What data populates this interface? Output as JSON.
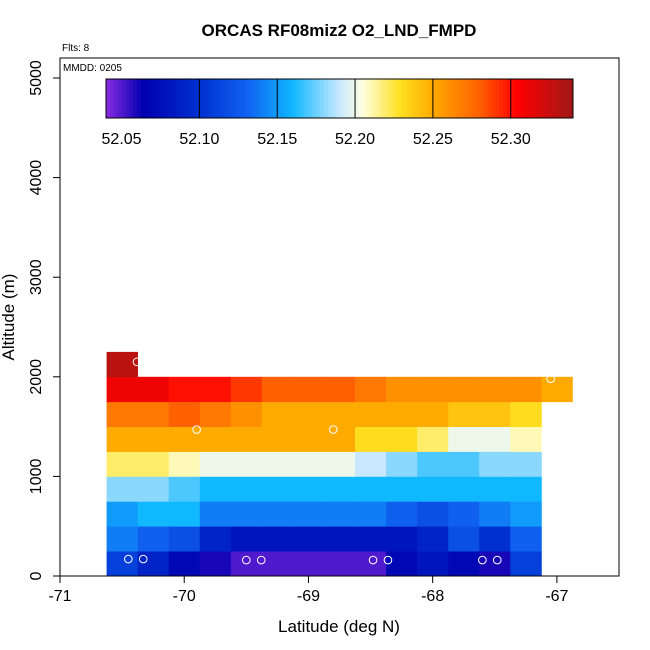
{
  "chart_data": {
    "type": "heatmap",
    "title": "ORCAS RF08miz2 O2_LND_FMPD",
    "xlabel": "Latitude (deg N)",
    "ylabel": "Altitude (m)",
    "xlim": [
      -71,
      -66.5
    ],
    "ylim": [
      0,
      5200
    ],
    "x_ticks": [
      -71,
      -70,
      -69,
      -68,
      -67
    ],
    "x_tick_labels": [
      "-71",
      "-70",
      "-69",
      "-68",
      "-67"
    ],
    "y_ticks": [
      0,
      1000,
      2000,
      3000,
      4000,
      5000
    ],
    "y_tick_labels": [
      "0",
      "1000",
      "2000",
      "3000",
      "4000",
      "5000"
    ],
    "note_flts": "Flts: 8",
    "note_mmdd": "MMDD: 0205",
    "colorbar": {
      "min": 52.04,
      "max": 52.34,
      "ticks": [
        52.05,
        52.1,
        52.15,
        52.2,
        52.25,
        52.3
      ],
      "tick_labels": [
        "52.05",
        "52.10",
        "52.15",
        "52.20",
        "52.25",
        "52.30"
      ]
    },
    "colormap_stops": [
      [
        0.0,
        "#8a2be2"
      ],
      [
        0.08,
        "#0000b0"
      ],
      [
        0.2,
        "#0030d0"
      ],
      [
        0.3,
        "#1060f0"
      ],
      [
        0.4,
        "#10b8ff"
      ],
      [
        0.5,
        "#c8e8ff"
      ],
      [
        0.55,
        "#ffffe0"
      ],
      [
        0.63,
        "#ffe020"
      ],
      [
        0.7,
        "#ffaa00"
      ],
      [
        0.8,
        "#ff6000"
      ],
      [
        0.88,
        "#ff0000"
      ],
      [
        1.0,
        "#a01818"
      ]
    ],
    "row_altitudes": [
      0,
      250,
      500,
      750,
      1000,
      1250,
      1500,
      1750,
      2000,
      2250
    ],
    "col_latitudes": [
      -70.5,
      -70.25,
      -70.0,
      -69.75,
      -69.5,
      -69.25,
      -69.0,
      -68.75,
      -68.5,
      -68.25,
      -68.0,
      -67.75,
      -67.5,
      -67.25,
      -67.0
    ],
    "cells": [
      [
        52.11,
        52.09,
        52.07,
        52.06,
        52.05,
        52.05,
        52.05,
        52.05,
        52.05,
        52.07,
        52.08,
        52.07,
        52.06,
        52.11,
        null
      ],
      [
        52.14,
        52.13,
        52.12,
        52.09,
        52.08,
        52.08,
        52.08,
        52.08,
        52.08,
        52.08,
        52.09,
        52.12,
        52.1,
        52.13,
        null
      ],
      [
        52.15,
        52.16,
        52.16,
        52.14,
        52.14,
        52.14,
        52.14,
        52.14,
        52.14,
        52.13,
        52.12,
        52.13,
        52.14,
        52.15,
        null
      ],
      [
        52.18,
        52.18,
        52.17,
        52.16,
        52.16,
        52.16,
        52.16,
        52.16,
        52.16,
        52.16,
        52.16,
        52.16,
        52.16,
        52.16,
        null
      ],
      [
        52.22,
        52.22,
        52.21,
        52.2,
        52.2,
        52.2,
        52.2,
        52.2,
        52.19,
        52.18,
        52.17,
        52.17,
        52.18,
        52.18,
        null
      ],
      [
        52.25,
        52.25,
        52.25,
        52.25,
        52.25,
        52.25,
        52.25,
        52.25,
        52.23,
        52.23,
        52.22,
        52.2,
        52.2,
        52.21,
        null
      ],
      [
        52.27,
        52.27,
        52.28,
        52.27,
        52.26,
        52.25,
        52.25,
        52.25,
        52.25,
        52.25,
        52.25,
        52.24,
        52.24,
        52.23,
        null
      ],
      [
        52.31,
        52.31,
        52.3,
        52.3,
        52.29,
        52.28,
        52.28,
        52.28,
        52.27,
        52.26,
        52.26,
        52.26,
        52.26,
        52.26,
        52.25
      ],
      [
        52.33,
        null,
        null,
        null,
        null,
        null,
        null,
        null,
        null,
        null,
        null,
        null,
        null,
        null,
        null
      ]
    ],
    "flight_points": [
      {
        "lat": -70.45,
        "alt": 170
      },
      {
        "lat": -70.33,
        "alt": 170
      },
      {
        "lat": -69.5,
        "alt": 160
      },
      {
        "lat": -69.38,
        "alt": 160
      },
      {
        "lat": -68.48,
        "alt": 160
      },
      {
        "lat": -68.36,
        "alt": 160
      },
      {
        "lat": -67.6,
        "alt": 160
      },
      {
        "lat": -67.48,
        "alt": 160
      },
      {
        "lat": -69.9,
        "alt": 1470
      },
      {
        "lat": -68.8,
        "alt": 1470
      },
      {
        "lat": -70.38,
        "alt": 2150
      },
      {
        "lat": -67.05,
        "alt": 1980
      }
    ]
  }
}
